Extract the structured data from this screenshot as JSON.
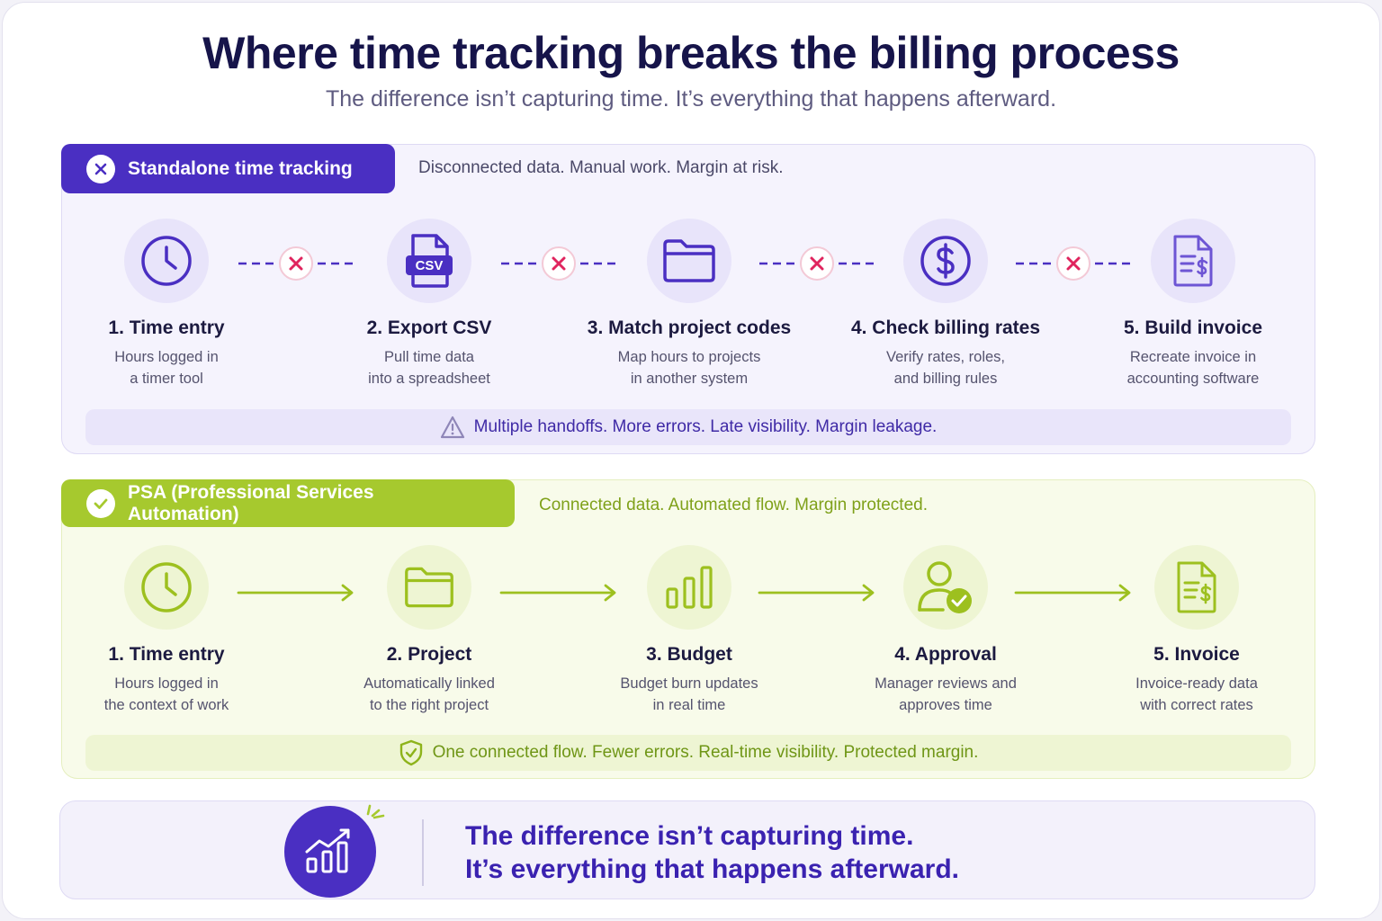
{
  "title": "Where time tracking breaks the billing process",
  "subtitle": "The difference isn’t capturing time. It’s everything that happens afterward.",
  "colors": {
    "standalone_accent": "#4a2fc2",
    "psa_accent": "#a6c92e",
    "error_mark": "#e0245e",
    "navy_text": "#16144a"
  },
  "standalone": {
    "label": "Standalone time tracking",
    "tagline": "Disconnected data. Manual work. Margin at risk.",
    "badge_icon": "x-icon",
    "connector_icon": "x-circle-icon",
    "steps": [
      {
        "icon": "clock-icon",
        "label": "1. Time entry",
        "desc1": "Hours logged in",
        "desc2": "a timer tool"
      },
      {
        "icon": "csv-file-icon",
        "icon_text": "CSV",
        "label": "2. Export CSV",
        "desc1": "Pull time data",
        "desc2": "into a spreadsheet"
      },
      {
        "icon": "folder-icon",
        "label": "3. Match project codes",
        "desc1": "Map hours to projects",
        "desc2": "in another system"
      },
      {
        "icon": "dollar-circle-icon",
        "label": "4. Check billing rates",
        "desc1": "Verify rates, roles,",
        "desc2": "and billing rules"
      },
      {
        "icon": "invoice-icon",
        "label": "5. Build invoice",
        "desc1": "Recreate invoice in",
        "desc2": "accounting software"
      }
    ],
    "banner_icon": "warning-icon",
    "banner": "Multiple handoffs. More errors. Late visibility. Margin leakage."
  },
  "psa": {
    "label": "PSA (Professional Services Automation)",
    "tagline": "Connected data. Automated flow. Margin protected.",
    "badge_icon": "check-icon",
    "connector_icon": "arrow-right-icon",
    "steps": [
      {
        "icon": "clock-icon",
        "label": "1. Time entry",
        "desc1": "Hours logged in",
        "desc2": "the context of work"
      },
      {
        "icon": "folder-icon",
        "label": "2. Project",
        "desc1": "Automatically linked",
        "desc2": "to the right project"
      },
      {
        "icon": "bar-chart-icon",
        "label": "3. Budget",
        "desc1": "Budget burn updates",
        "desc2": "in real time"
      },
      {
        "icon": "user-check-icon",
        "label": "4. Approval",
        "desc1": "Manager reviews and",
        "desc2": "approves time"
      },
      {
        "icon": "invoice-icon",
        "label": "5. Invoice",
        "desc1": "Invoice-ready data",
        "desc2": "with correct rates"
      }
    ],
    "banner_icon": "shield-check-icon",
    "banner": "One connected flow. Fewer errors. Real-time visibility. Protected margin."
  },
  "footer": {
    "icon": "trending-up-chart-icon",
    "line1": "The difference isn’t capturing time.",
    "line2": "It’s everything that happens afterward."
  }
}
